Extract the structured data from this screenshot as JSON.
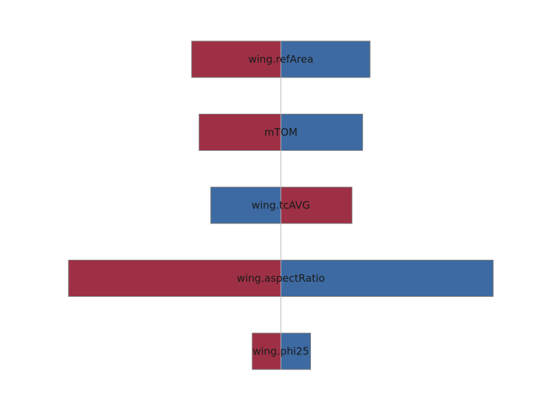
{
  "chart_data": {
    "type": "bar",
    "orientation": "horizontal",
    "style": "tornado",
    "baseline": 0,
    "xlim": [
      -1.0,
      1.0
    ],
    "grid": false,
    "axes_visible": false,
    "categories": [
      "wing.refArea",
      "mTOM",
      "wing.tcAVG",
      "wing.aspectRatio",
      "wing.phi25"
    ],
    "series": [
      {
        "color": "#9e3045",
        "values": [
          -0.42,
          -0.385,
          0.335,
          -1.0,
          -0.135
        ]
      },
      {
        "color": "#3d6aa2",
        "values": [
          0.42,
          0.385,
          -0.33,
          1.0,
          0.14
        ]
      }
    ]
  }
}
